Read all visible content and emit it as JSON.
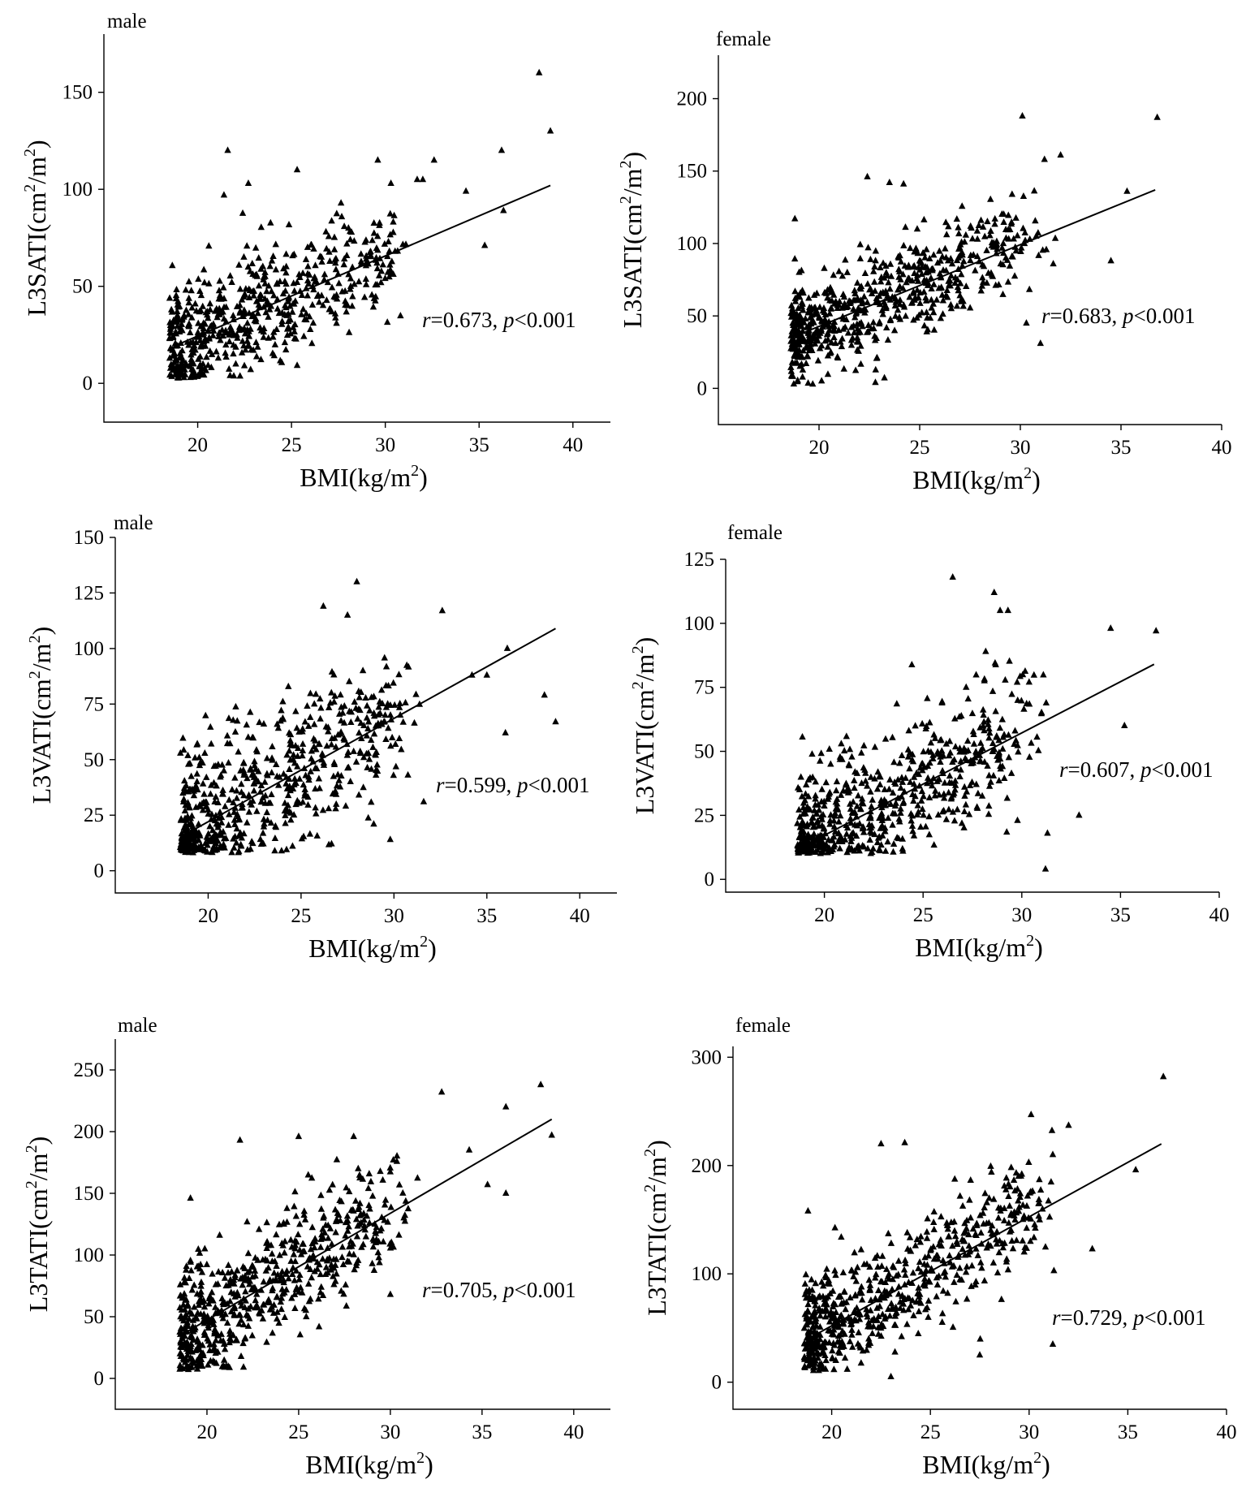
{
  "figure": {
    "x_axis_label": "BMI(kg/m",
    "x_axis_label_sup": "2",
    "x_axis_label_end": ")"
  },
  "chart_data": [
    {
      "type": "scatter",
      "id": "male-sati",
      "title": "male",
      "ylabel": "L3SATI(cm",
      "ylabel_sup1": "2",
      "ylabel_mid": "/m",
      "ylabel_sup2": "2",
      "ylabel_end": ")",
      "xlim": [
        15,
        42
      ],
      "ylim": [
        -20,
        180
      ],
      "xticks": [
        20,
        25,
        30,
        35,
        40
      ],
      "yticks": [
        0,
        50,
        100,
        150
      ],
      "annotation": {
        "r_symbol": "r",
        "r_value": "=0.673, ",
        "p_symbol": "p",
        "p_value": "<0.001"
      },
      "fit": {
        "x": [
          18.7,
          38.8
        ],
        "y": [
          19,
          102
        ]
      },
      "n_points": 600,
      "seed": 11,
      "x_range": [
        18.5,
        33
      ],
      "noise": 15,
      "outliers": [
        [
          38.2,
          160
        ],
        [
          38.8,
          130
        ],
        [
          21.6,
          120
        ],
        [
          25.3,
          110
        ],
        [
          29.6,
          115
        ],
        [
          36.2,
          120
        ],
        [
          32.6,
          115
        ],
        [
          34.3,
          99
        ],
        [
          36.3,
          89
        ],
        [
          35.3,
          71
        ],
        [
          22.7,
          103
        ],
        [
          21.4,
          97
        ],
        [
          31.7,
          105
        ],
        [
          32.0,
          105
        ],
        [
          30.3,
          103
        ]
      ]
    },
    {
      "type": "scatter",
      "id": "female-sati",
      "title": "female",
      "ylabel": "L3SATI(cm",
      "ylabel_sup1": "2",
      "ylabel_mid": "/m",
      "ylabel_sup2": "2",
      "ylabel_end": ")",
      "xlim": [
        15,
        40
      ],
      "ylim": [
        -25,
        230
      ],
      "xticks": [
        20,
        25,
        30,
        35,
        40
      ],
      "yticks": [
        0,
        50,
        100,
        150,
        200
      ],
      "annotation": {
        "r_symbol": "r",
        "r_value": "=0.683, ",
        "p_symbol": "p",
        "p_value": "<0.001"
      },
      "fit": {
        "x": [
          18.8,
          36.7
        ],
        "y": [
          36,
          137
        ]
      },
      "n_points": 650,
      "seed": 23,
      "x_range": [
        18.6,
        33
      ],
      "noise": 17,
      "outliers": [
        [
          36.8,
          187
        ],
        [
          30.1,
          188
        ],
        [
          32.0,
          161
        ],
        [
          31.2,
          158
        ],
        [
          35.3,
          136
        ],
        [
          34.5,
          88
        ],
        [
          22.4,
          146
        ],
        [
          23.5,
          142
        ],
        [
          24.2,
          141
        ],
        [
          18.8,
          117
        ],
        [
          22.8,
          4
        ],
        [
          31.0,
          31
        ],
        [
          30.3,
          45
        ]
      ]
    },
    {
      "type": "scatter",
      "id": "male-vati",
      "title": "male",
      "ylabel": "L3VATI(cm",
      "ylabel_sup1": "2",
      "ylabel_mid": "/m",
      "ylabel_sup2": "2",
      "ylabel_end": ")",
      "xlim": [
        15,
        42
      ],
      "ylim": [
        -10,
        150
      ],
      "xticks": [
        20,
        25,
        30,
        35,
        40
      ],
      "yticks": [
        0,
        25,
        50,
        75,
        100,
        125,
        150
      ],
      "annotation": {
        "r_symbol": "r",
        "r_value": "=0.599, ",
        "p_symbol": "p",
        "p_value": "<0.001"
      },
      "fit": {
        "x": [
          18.7,
          38.7
        ],
        "y": [
          16,
          109
        ]
      },
      "n_points": 620,
      "seed": 37,
      "x_range": [
        18.5,
        33
      ],
      "noise": 17,
      "outliers": [
        [
          28.0,
          130
        ],
        [
          26.2,
          119
        ],
        [
          27.5,
          115
        ],
        [
          32.6,
          117
        ],
        [
          38.1,
          79
        ],
        [
          38.7,
          67
        ],
        [
          36.1,
          100
        ],
        [
          36.0,
          62
        ],
        [
          34.2,
          88
        ],
        [
          35.0,
          88
        ],
        [
          29.8,
          14
        ],
        [
          31.6,
          31
        ]
      ]
    },
    {
      "type": "scatter",
      "id": "female-vati",
      "title": "female",
      "ylabel": "L3VATI(cm",
      "ylabel_sup1": "2",
      "ylabel_mid": "/m",
      "ylabel_sup2": "2",
      "ylabel_end": ")",
      "xlim": [
        15,
        40
      ],
      "ylim": [
        -5,
        125
      ],
      "xticks": [
        20,
        25,
        30,
        35,
        40
      ],
      "yticks": [
        0,
        25,
        50,
        75,
        100,
        125
      ],
      "annotation": {
        "r_symbol": "r",
        "r_value": "=0.607, ",
        "p_symbol": "p",
        "p_value": "<0.001"
      },
      "fit": {
        "x": [
          19.2,
          36.7
        ],
        "y": [
          14,
          84
        ]
      },
      "n_points": 640,
      "seed": 41,
      "x_range": [
        18.6,
        33
      ],
      "noise": 14,
      "outliers": [
        [
          26.5,
          118
        ],
        [
          28.6,
          112
        ],
        [
          28.9,
          105
        ],
        [
          29.3,
          105
        ],
        [
          34.5,
          98
        ],
        [
          36.8,
          97
        ],
        [
          35.2,
          60
        ],
        [
          31.2,
          4
        ],
        [
          32.9,
          25
        ],
        [
          31.3,
          18
        ]
      ]
    },
    {
      "type": "scatter",
      "id": "male-tati",
      "title": "male",
      "ylabel": "L3TATI(cm",
      "ylabel_sup1": "2",
      "ylabel_mid": "/m",
      "ylabel_sup2": "2",
      "ylabel_end": ")",
      "xlim": [
        15,
        42
      ],
      "ylim": [
        -25,
        275
      ],
      "xticks": [
        20,
        25,
        30,
        35,
        40
      ],
      "yticks": [
        0,
        50,
        100,
        150,
        200,
        250
      ],
      "annotation": {
        "r_symbol": "r",
        "r_value": "=0.705, ",
        "p_symbol": "p",
        "p_value": "<0.001"
      },
      "fit": {
        "x": [
          18.7,
          38.8
        ],
        "y": [
          36,
          210
        ]
      },
      "n_points": 620,
      "seed": 53,
      "x_range": [
        18.5,
        33
      ],
      "noise": 25,
      "outliers": [
        [
          38.2,
          238
        ],
        [
          38.8,
          197
        ],
        [
          32.8,
          232
        ],
        [
          36.3,
          220
        ],
        [
          36.3,
          150
        ],
        [
          35.3,
          157
        ],
        [
          21.8,
          193
        ],
        [
          25.0,
          196
        ],
        [
          28.0,
          196
        ],
        [
          34.3,
          185
        ],
        [
          19.1,
          146
        ],
        [
          30.0,
          68
        ]
      ]
    },
    {
      "type": "scatter",
      "id": "female-tati",
      "title": "female",
      "ylabel": "L3TATI(cm",
      "ylabel_sup1": "2",
      "ylabel_mid": "/m",
      "ylabel_sup2": "2",
      "ylabel_end": ")",
      "xlim": [
        15,
        40
      ],
      "ylim": [
        -25,
        310
      ],
      "xticks": [
        20,
        25,
        30,
        35,
        40
      ],
      "yticks": [
        0,
        100,
        200,
        300
      ],
      "annotation": {
        "r_symbol": "r",
        "r_value": "=0.729, ",
        "p_symbol": "p",
        "p_value": "<0.001"
      },
      "fit": {
        "x": [
          19.0,
          36.7
        ],
        "y": [
          42,
          220
        ]
      },
      "n_points": 640,
      "seed": 67,
      "x_range": [
        18.6,
        33
      ],
      "noise": 26,
      "outliers": [
        [
          36.8,
          282
        ],
        [
          30.1,
          247
        ],
        [
          32.0,
          237
        ],
        [
          22.5,
          220
        ],
        [
          23.7,
          221
        ],
        [
          35.4,
          196
        ],
        [
          31.2,
          210
        ],
        [
          18.8,
          158
        ],
        [
          23.0,
          5
        ],
        [
          31.2,
          35
        ],
        [
          33.2,
          123
        ],
        [
          27.5,
          25
        ]
      ]
    }
  ]
}
